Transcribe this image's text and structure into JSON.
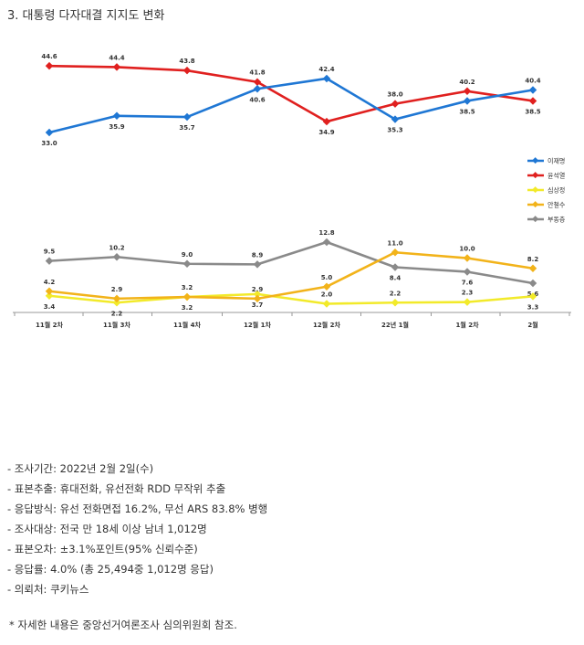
{
  "title": "3. 대통령 다자대결 지지도 변화",
  "chart_data": {
    "type": "line",
    "categories": [
      "11월 2차",
      "11월 3차",
      "11월 4차",
      "12월 1차",
      "12월 2차",
      "22년 1월",
      "1월 2차",
      "2월"
    ],
    "series": [
      {
        "name": "이재명",
        "color": "#1f77d4",
        "values": [
          33.0,
          35.9,
          35.7,
          40.6,
          42.4,
          35.3,
          38.5,
          40.4
        ]
      },
      {
        "name": "윤석열",
        "color": "#e0201f",
        "values": [
          44.6,
          44.4,
          43.8,
          41.8,
          34.9,
          38.0,
          40.2,
          38.5
        ]
      },
      {
        "name": "심상정",
        "color": "#f2ea2a",
        "values": [
          3.4,
          2.2,
          3.2,
          3.7,
          2.0,
          2.2,
          2.3,
          3.3
        ]
      },
      {
        "name": "안철수",
        "color": "#f2b31a",
        "values": [
          4.2,
          2.9,
          3.2,
          2.9,
          5.0,
          11.0,
          10.0,
          8.2
        ]
      },
      {
        "name": "부동층",
        "color": "#8a8a8a",
        "values": [
          9.5,
          10.2,
          9.0,
          8.9,
          12.8,
          8.4,
          7.6,
          5.6
        ]
      }
    ]
  },
  "notes": [
    "- 조사기간: 2022년 2월 2일(수)",
    "- 표본추출: 휴대전화, 유선전화 RDD 무작위 추출",
    "- 응답방식: 유선 전화면접 16.2%, 무선 ARS 83.8% 병행",
    "- 조사대상: 전국 만 18세 이상 남녀 1,012명",
    "- 표본오차: ±3.1%포인트(95% 신뢰수준)",
    "- 응답률: 4.0% (총 25,494중 1,012명 응답)",
    "- 의뢰처: 쿠키뉴스"
  ],
  "footnote": "* 자세한 내용은 중앙선거여론조사 심의위원회 참조."
}
